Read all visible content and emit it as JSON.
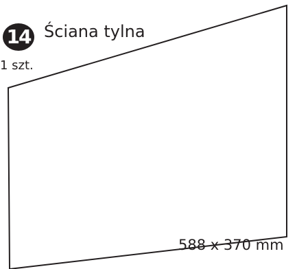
{
  "part": {
    "number": "14",
    "name": "Ściana tylna",
    "quantity": "1 szt.",
    "dimensions": "588 x 370 mm"
  },
  "colors": {
    "line": "#231f20",
    "badge_fill": "#231f20",
    "badge_text": "#ffffff",
    "background": "#ffffff"
  }
}
